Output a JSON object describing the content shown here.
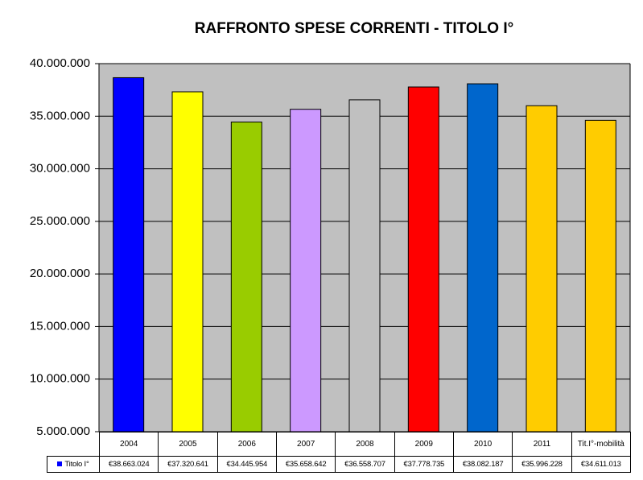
{
  "chart_data": {
    "type": "bar",
    "title": "RAFFRONTO SPESE CORRENTI - TITOLO I°",
    "categories": [
      "2004",
      "2005",
      "2006",
      "2007",
      "2008",
      "2009",
      "2010",
      "2011",
      "Tit.I°-mobilità"
    ],
    "series": [
      {
        "name": "Titolo I°",
        "color": "#0000ff",
        "colors": [
          "#0000ff",
          "#ffff00",
          "#99cc00",
          "#cc99ff",
          "#c0c0c0",
          "#ff0000",
          "#0066cc",
          "#ffcc00",
          "#ffcc00"
        ],
        "values": [
          38663024,
          37320641,
          34445954,
          35658642,
          36558707,
          37778735,
          38082187,
          35996228,
          34611013
        ],
        "value_labels": [
          "€38.663.024",
          "€37.320.641",
          "€34.445.954",
          "€35.658.642",
          "€36.558.707",
          "€37.778.735",
          "€38.082.187",
          "€35.996.228",
          "€34.611.013"
        ]
      }
    ],
    "ylim": [
      5000000,
      40000000
    ],
    "yticks": [
      {
        "value": 5000000,
        "label": "5.000.000"
      },
      {
        "value": 10000000,
        "label": "10.000.000"
      },
      {
        "value": 15000000,
        "label": "15.000.000"
      },
      {
        "value": 20000000,
        "label": "20.000.000"
      },
      {
        "value": 25000000,
        "label": "25.000.000"
      },
      {
        "value": 30000000,
        "label": "30.000.000"
      },
      {
        "value": 35000000,
        "label": "35.000.000"
      },
      {
        "value": 40000000,
        "label": "40.000.000"
      }
    ],
    "grid": true,
    "plot_background": "#c0c0c0"
  }
}
